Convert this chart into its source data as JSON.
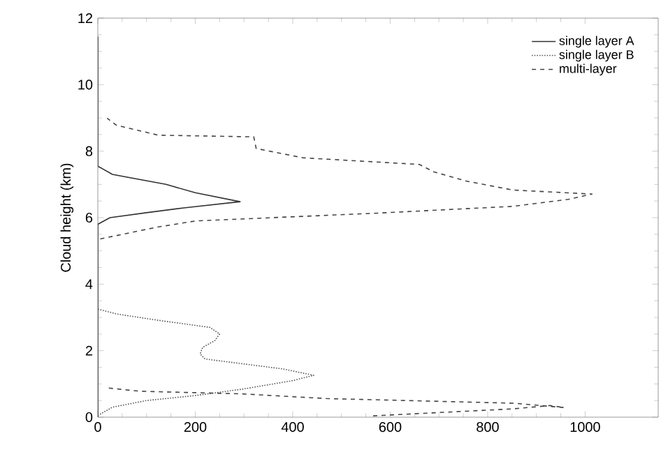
{
  "chart_data": {
    "type": "line",
    "ylabel": "Cloud height (km)",
    "xlim": [
      0,
      1150
    ],
    "ylim": [
      0,
      12
    ],
    "xticks": [
      0,
      200,
      400,
      600,
      800,
      1000
    ],
    "yticks": [
      0,
      2,
      4,
      6,
      8,
      10,
      12
    ],
    "legend": "top right",
    "grid": false,
    "series": [
      {
        "name": "single layer A",
        "color": "#333333",
        "line_style": "solid",
        "x": [
          0,
          0,
          25,
          100,
          180,
          292,
          200,
          140,
          30,
          0,
          0
        ],
        "values": [
          0,
          5.8,
          6.0,
          6.15,
          6.3,
          6.48,
          6.75,
          7.0,
          7.3,
          7.55,
          11.45
        ]
      },
      {
        "name": "single layer B",
        "color": "#555555",
        "line_style": "dotted",
        "x": [
          0,
          30,
          100,
          200,
          300,
          400,
          443,
          380,
          300,
          220,
          210,
          215,
          240,
          250,
          230,
          130,
          40,
          0
        ],
        "values": [
          0.05,
          0.3,
          0.5,
          0.65,
          0.85,
          1.1,
          1.26,
          1.45,
          1.6,
          1.75,
          1.9,
          2.1,
          2.3,
          2.5,
          2.7,
          2.9,
          3.1,
          3.25
        ]
      },
      {
        "name": "multi-layer",
        "color": "#444444",
        "line_style": "dashed",
        "x": [
          565,
          852,
          928,
          957,
          852,
          469,
          297,
          86,
          19,
          null,
          5,
          120,
          200,
          565,
          852,
          966,
          1014,
          852,
          756,
          689,
          660,
          421,
          325,
          320,
          124,
          38,
          19
        ],
        "values": [
          0.04,
          0.25,
          0.35,
          0.29,
          0.42,
          0.56,
          0.7,
          0.78,
          0.88,
          null,
          5.36,
          5.71,
          5.9,
          6.13,
          6.34,
          6.55,
          6.71,
          6.83,
          7.1,
          7.38,
          7.6,
          7.8,
          8.08,
          8.43,
          8.48,
          8.78,
          8.99
        ]
      }
    ]
  }
}
